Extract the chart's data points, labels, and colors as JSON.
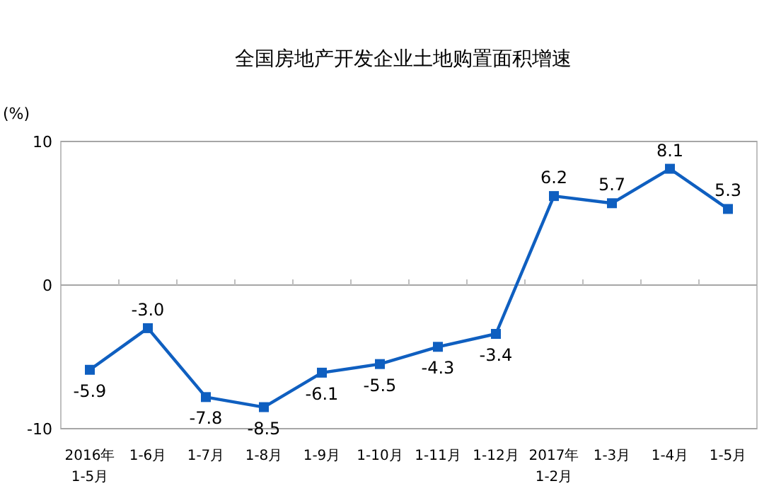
{
  "chart_data": {
    "type": "line",
    "title": "全国房地产开发企业土地购置面积增速",
    "ylabel": "(%)",
    "categories": [
      "2016年\n1-5月",
      "1-6月",
      "1-7月",
      "1-8月",
      "1-9月",
      "1-10月",
      "1-11月",
      "1-12月",
      "2017年\n1-2月",
      "1-3月",
      "1-4月",
      "1-5月"
    ],
    "series": [
      {
        "color": "#0f5fc0",
        "values": [
          -5.9,
          -3.0,
          -7.8,
          -8.5,
          -6.1,
          -5.5,
          -4.3,
          -3.4,
          6.2,
          5.7,
          8.1,
          5.3
        ],
        "value_labels": [
          "-5.9",
          "-3.0",
          "-7.8",
          "-8.5",
          "-6.1",
          "-5.5",
          "-4.3",
          "-3.4",
          "6.2",
          "5.7",
          "8.1",
          "5.3"
        ]
      }
    ],
    "ylim": [
      -10,
      10
    ],
    "yticks": [
      -10,
      0,
      10
    ],
    "grid": "y",
    "marker": "square",
    "line_style": "solid"
  }
}
